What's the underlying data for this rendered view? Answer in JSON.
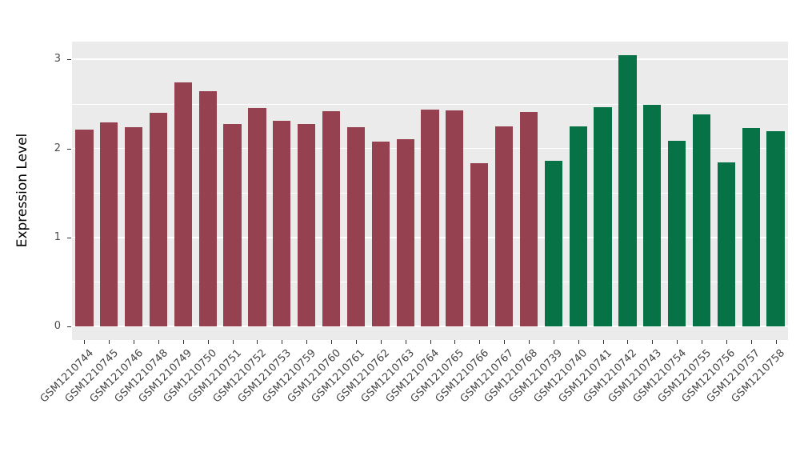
{
  "chart_data": {
    "type": "bar",
    "title": "",
    "xlabel": "",
    "ylabel": "Expression Level",
    "ylim": [
      0,
      3.2
    ],
    "yticks": [
      0,
      1,
      2,
      3
    ],
    "grid": "on",
    "legend_position": "none",
    "panel_bg": "#EBEBEB",
    "grid_color": "#FFFFFF",
    "group_colors": [
      "#96414F",
      "#077245"
    ],
    "categories": [
      "GSM1210744",
      "GSM1210745",
      "GSM1210746",
      "GSM1210748",
      "GSM1210749",
      "GSM1210750",
      "GSM1210751",
      "GSM1210752",
      "GSM1210753",
      "GSM1210759",
      "GSM1210760",
      "GSM1210761",
      "GSM1210762",
      "GSM1210763",
      "GSM1210764",
      "GSM1210765",
      "GSM1210766",
      "GSM1210767",
      "GSM1210768",
      "GSM1210739",
      "GSM1210740",
      "GSM1210741",
      "GSM1210742",
      "GSM1210743",
      "GSM1210754",
      "GSM1210755",
      "GSM1210756",
      "GSM1210757",
      "GSM1210758"
    ],
    "values": [
      2.21,
      2.29,
      2.24,
      2.4,
      2.74,
      2.64,
      2.27,
      2.45,
      2.31,
      2.27,
      2.42,
      2.24,
      2.08,
      2.1,
      2.44,
      2.43,
      1.83,
      2.25,
      2.41,
      1.86,
      2.25,
      2.46,
      3.05,
      2.49,
      2.09,
      2.38,
      1.84,
      2.23,
      2.19
    ],
    "bar_group": [
      0,
      0,
      0,
      0,
      0,
      0,
      0,
      0,
      0,
      0,
      0,
      0,
      0,
      0,
      0,
      0,
      0,
      0,
      0,
      1,
      1,
      1,
      1,
      1,
      1,
      1,
      1,
      1,
      1
    ]
  }
}
